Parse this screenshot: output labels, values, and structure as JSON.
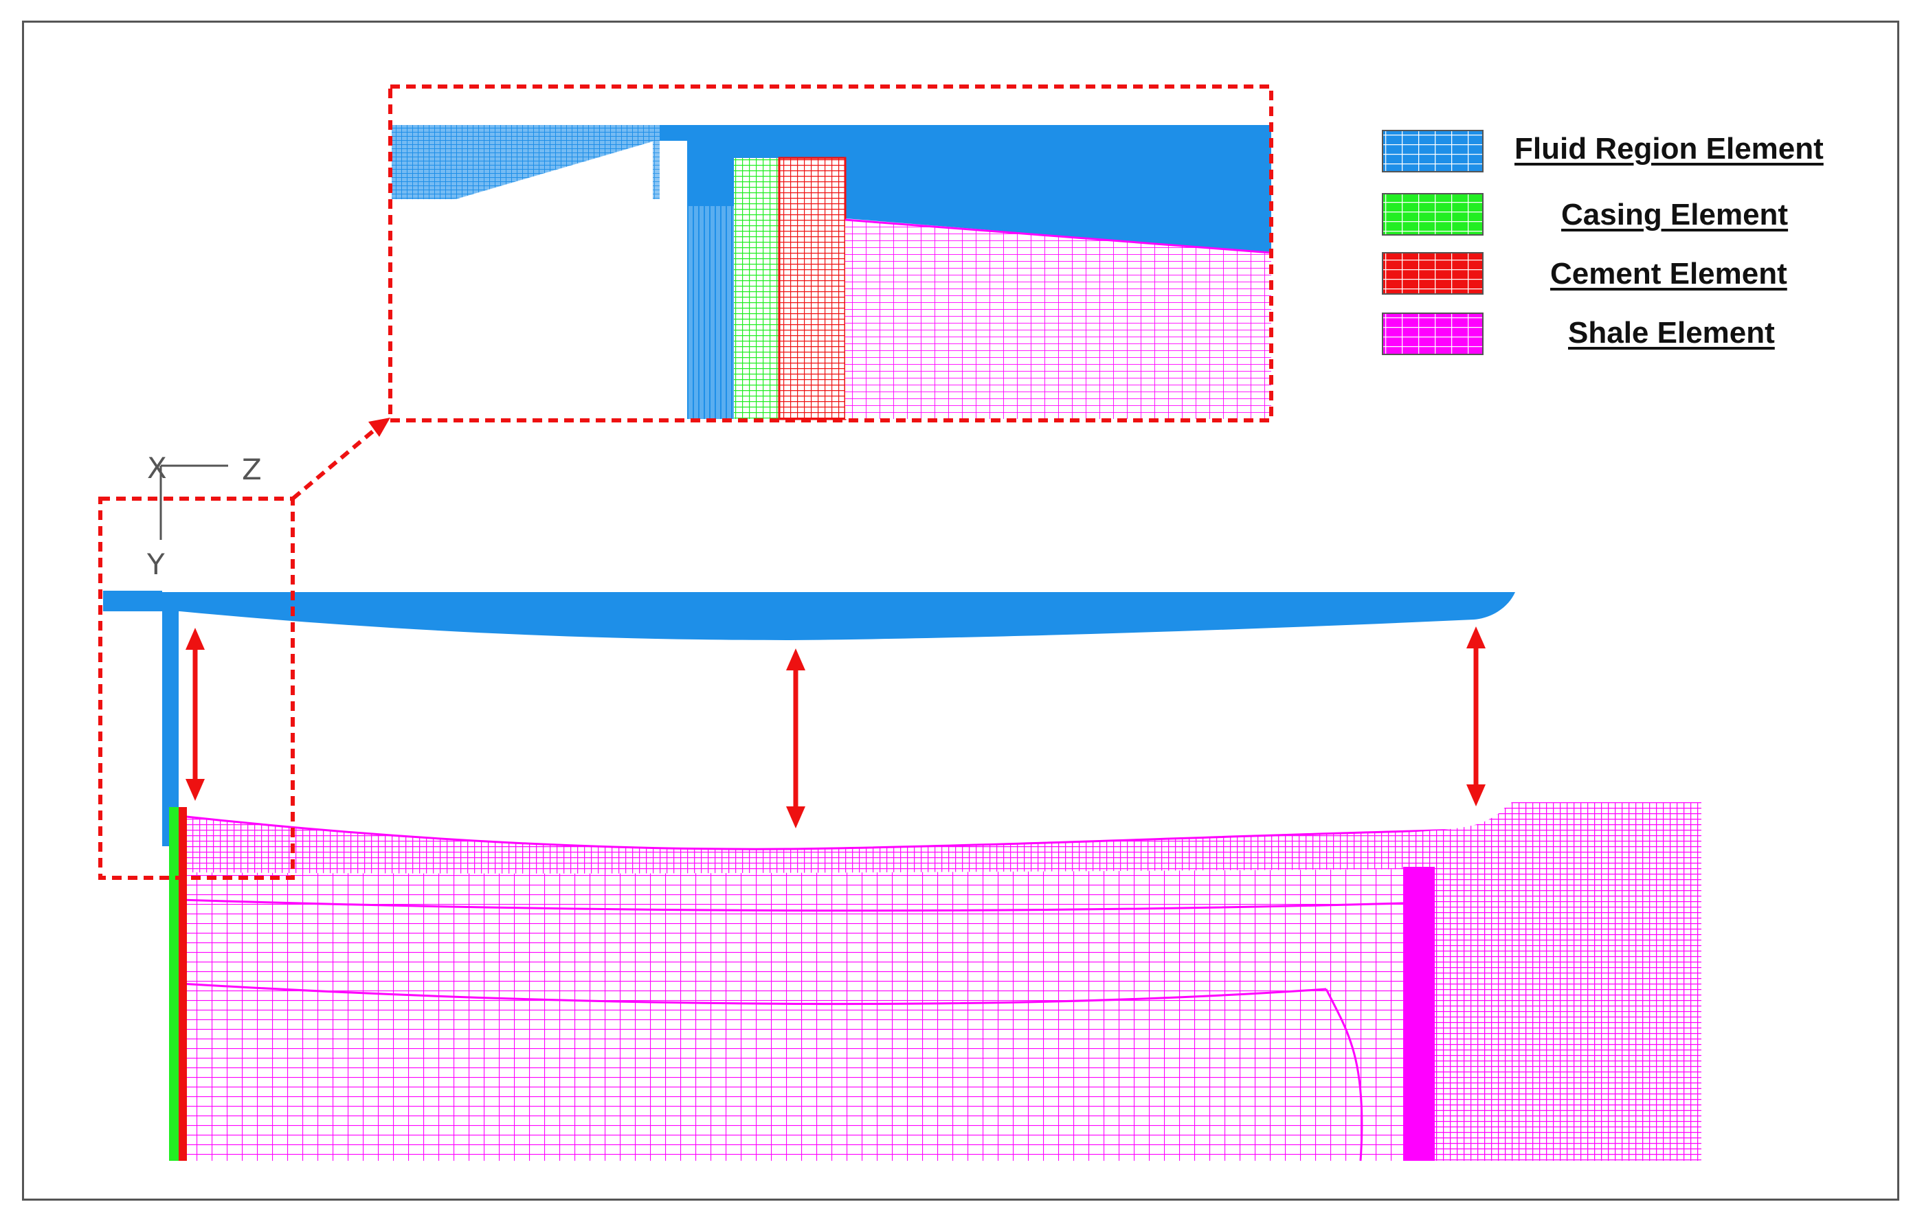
{
  "legend": {
    "fluid": {
      "label": "Fluid Region Element",
      "color": "#1e8fe8"
    },
    "casing": {
      "label": "Casing Element",
      "color": "#22ee22"
    },
    "cement": {
      "label": "Cement Element",
      "color": "#ee1111"
    },
    "shale": {
      "label": "Shale Element",
      "color": "#ff00ff"
    }
  },
  "axes": {
    "x": "X",
    "z": "Z",
    "y": "Y"
  },
  "colors": {
    "callout": "#ee1111",
    "arrow": "#ee1111",
    "axis": "#555555"
  }
}
